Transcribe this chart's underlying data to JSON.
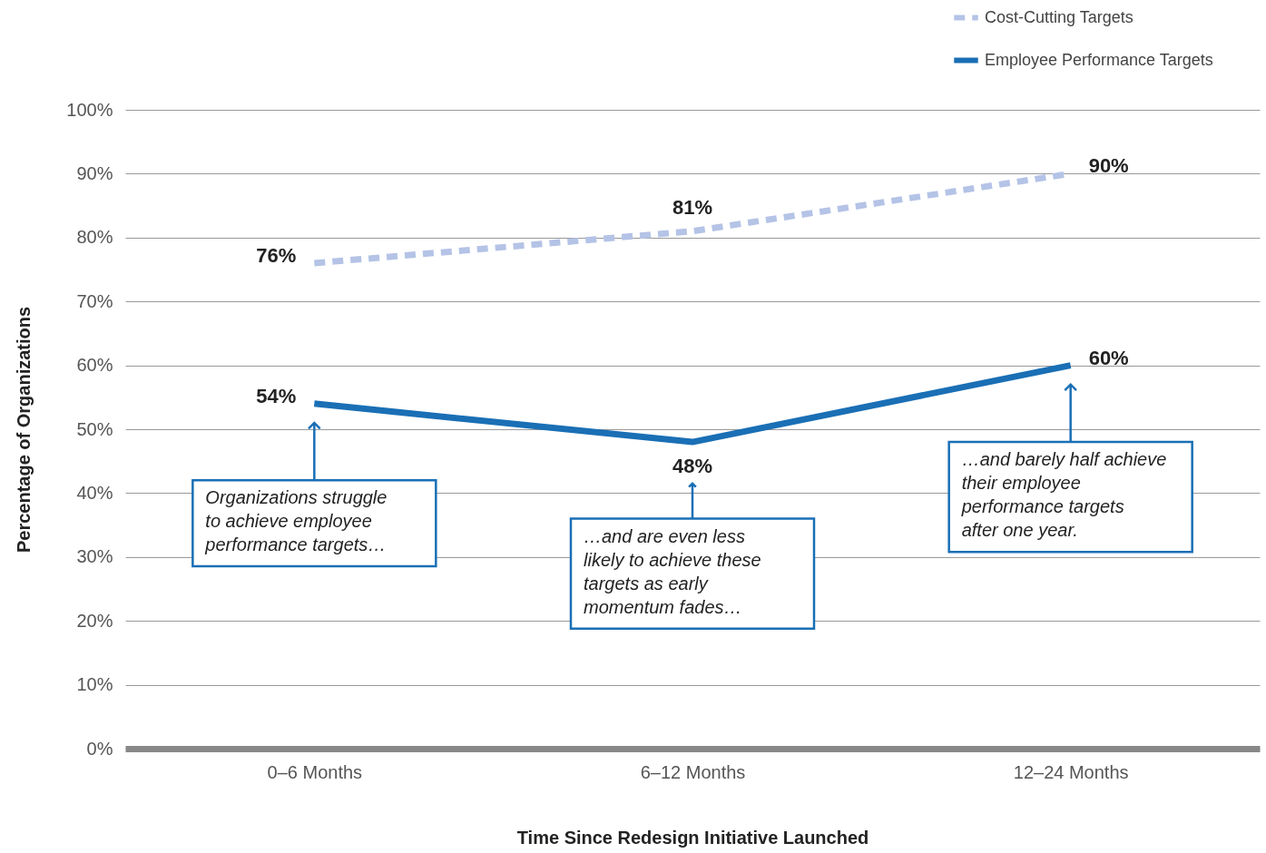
{
  "chart_data": {
    "type": "line",
    "xlabel": "Time Since Redesign Initiative Launched",
    "ylabel": "Percentage of Organizations",
    "categories": [
      "0–6 Months",
      "6–12 Months",
      "12–24 Months"
    ],
    "series": [
      {
        "name": "Cost-Cutting Targets",
        "color": "#b4c3e6",
        "line_style": "dashed",
        "values": [
          76,
          81,
          90
        ],
        "value_labels": [
          "76%",
          "81%",
          "90%"
        ]
      },
      {
        "name": "Employee Performance Targets",
        "color": "#1a6fb5",
        "line_style": "solid",
        "values": [
          54,
          48,
          60
        ],
        "value_labels": [
          "54%",
          "48%",
          "60%"
        ]
      }
    ],
    "ylim": [
      0,
      100
    ],
    "yticks": [
      {
        "value": 0,
        "label": "0%"
      },
      {
        "value": 10,
        "label": "10%"
      },
      {
        "value": 20,
        "label": "20%"
      },
      {
        "value": 30,
        "label": "30%"
      },
      {
        "value": 40,
        "label": "40%"
      },
      {
        "value": 50,
        "label": "50%"
      },
      {
        "value": 60,
        "label": "60%"
      },
      {
        "value": 70,
        "label": "70%"
      },
      {
        "value": 80,
        "label": "80%"
      },
      {
        "value": 90,
        "label": "90%"
      },
      {
        "value": 100,
        "label": "100%"
      }
    ],
    "grid": "y",
    "legend": "top right",
    "marker": "none",
    "annotations": [
      "Organizations struggle to achieve employee performance targets…",
      "…and are even less likely to achieve these targets as early momentum fades…",
      "…and barely half achieve their employee performance targets after one year."
    ]
  }
}
